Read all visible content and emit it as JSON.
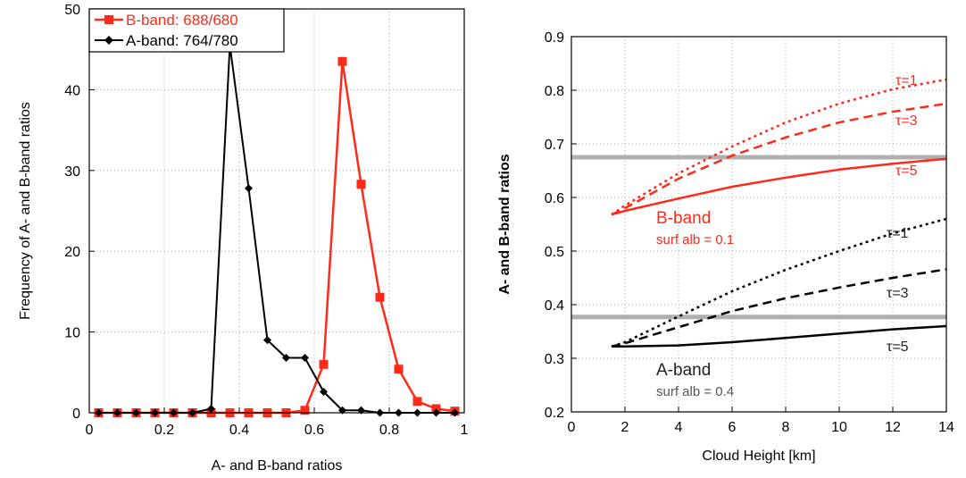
{
  "chart_data": [
    {
      "type": "line",
      "xlabel": "A- and B-band ratios",
      "ylabel": "Frequency of A- and B-band ratios",
      "xlim": [
        0,
        1
      ],
      "ylim": [
        0,
        50
      ],
      "xticks": [
        "0",
        "0.2",
        "0.4",
        "0.6",
        "0.8",
        "1"
      ],
      "yticks": [
        "0",
        "10",
        "20",
        "30",
        "40",
        "50"
      ],
      "grid": true,
      "legend_position": "top-left",
      "series": [
        {
          "name": "B-band: 688/680",
          "color": "#ff2a1a",
          "marker": "square",
          "x": [
            0.025,
            0.075,
            0.125,
            0.175,
            0.225,
            0.275,
            0.325,
            0.375,
            0.425,
            0.475,
            0.525,
            0.575,
            0.625,
            0.675,
            0.725,
            0.775,
            0.825,
            0.875,
            0.925,
            0.975
          ],
          "y": [
            0,
            0,
            0,
            0,
            0,
            0,
            0,
            0,
            0,
            0,
            0,
            0.3,
            6.0,
            43.5,
            28.3,
            14.3,
            5.4,
            1.4,
            0.5,
            0.2
          ]
        },
        {
          "name": "A-band: 764/780",
          "color": "#000000",
          "marker": "diamond",
          "x": [
            0.025,
            0.075,
            0.125,
            0.175,
            0.225,
            0.275,
            0.325,
            0.375,
            0.425,
            0.475,
            0.525,
            0.575,
            0.625,
            0.675,
            0.725,
            0.775,
            0.825,
            0.875,
            0.925,
            0.975
          ],
          "y": [
            0,
            0,
            0,
            0,
            0,
            0,
            0.5,
            45.5,
            27.8,
            9.0,
            6.8,
            6.8,
            2.6,
            0.3,
            0.3,
            0,
            0,
            0,
            0,
            0
          ]
        }
      ]
    },
    {
      "type": "line",
      "xlabel": "Cloud Height [km]",
      "ylabel": "A- and B-band ratios",
      "xlim": [
        0,
        14
      ],
      "ylim": [
        0.2,
        0.9
      ],
      "xticks": [
        "0",
        "2",
        "4",
        "6",
        "8",
        "10",
        "12",
        "14"
      ],
      "yticks": [
        "0.2",
        "0.3",
        "0.4",
        "0.5",
        "0.6",
        "0.7",
        "0.8",
        "0.9"
      ],
      "grid": true,
      "hlines": [
        0.675,
        0.377
      ],
      "series": [
        {
          "name": "τ=1",
          "band": "B",
          "color": "#ff2a1a",
          "dash": "dotted",
          "x": [
            1.5,
            2,
            4,
            6,
            8,
            10,
            12,
            14
          ],
          "y": [
            0.568,
            0.585,
            0.645,
            0.695,
            0.74,
            0.775,
            0.802,
            0.82
          ]
        },
        {
          "name": "τ=3",
          "band": "B",
          "color": "#ff2a1a",
          "dash": "dashed",
          "x": [
            1.5,
            2,
            4,
            6,
            8,
            10,
            12,
            14
          ],
          "y": [
            0.568,
            0.58,
            0.635,
            0.678,
            0.712,
            0.74,
            0.76,
            0.775
          ]
        },
        {
          "name": "τ=5",
          "band": "B",
          "color": "#ff2a1a",
          "dash": "solid",
          "x": [
            1.5,
            2,
            4,
            6,
            8,
            10,
            12,
            14
          ],
          "y": [
            0.568,
            0.575,
            0.598,
            0.62,
            0.637,
            0.652,
            0.663,
            0.672
          ]
        },
        {
          "name": "τ=1",
          "band": "A",
          "color": "#000000",
          "dash": "dotted",
          "x": [
            1.5,
            2,
            4,
            6,
            8,
            10,
            12,
            14
          ],
          "y": [
            0.322,
            0.33,
            0.378,
            0.425,
            0.465,
            0.5,
            0.533,
            0.56
          ]
        },
        {
          "name": "τ=3",
          "band": "A",
          "color": "#000000",
          "dash": "dashed",
          "x": [
            1.5,
            2,
            4,
            6,
            8,
            10,
            12,
            14
          ],
          "y": [
            0.322,
            0.328,
            0.358,
            0.388,
            0.412,
            0.432,
            0.45,
            0.466
          ]
        },
        {
          "name": "τ=5",
          "band": "A",
          "color": "#000000",
          "dash": "solid",
          "x": [
            1.5,
            2,
            4,
            6,
            8,
            10,
            12,
            14
          ],
          "y": [
            0.322,
            0.322,
            0.324,
            0.33,
            0.338,
            0.346,
            0.354,
            0.36
          ]
        }
      ],
      "annotations": {
        "b_band": "B-band",
        "b_surf": "surf alb = 0.1",
        "a_band": "A-band",
        "a_surf": "surf alb = 0.4",
        "b_tau1": "τ=1",
        "b_tau3": "τ=3",
        "b_tau5": "τ=5",
        "a_tau1": "τ=1",
        "a_tau3": "τ=3",
        "a_tau5": "τ=5"
      }
    }
  ]
}
